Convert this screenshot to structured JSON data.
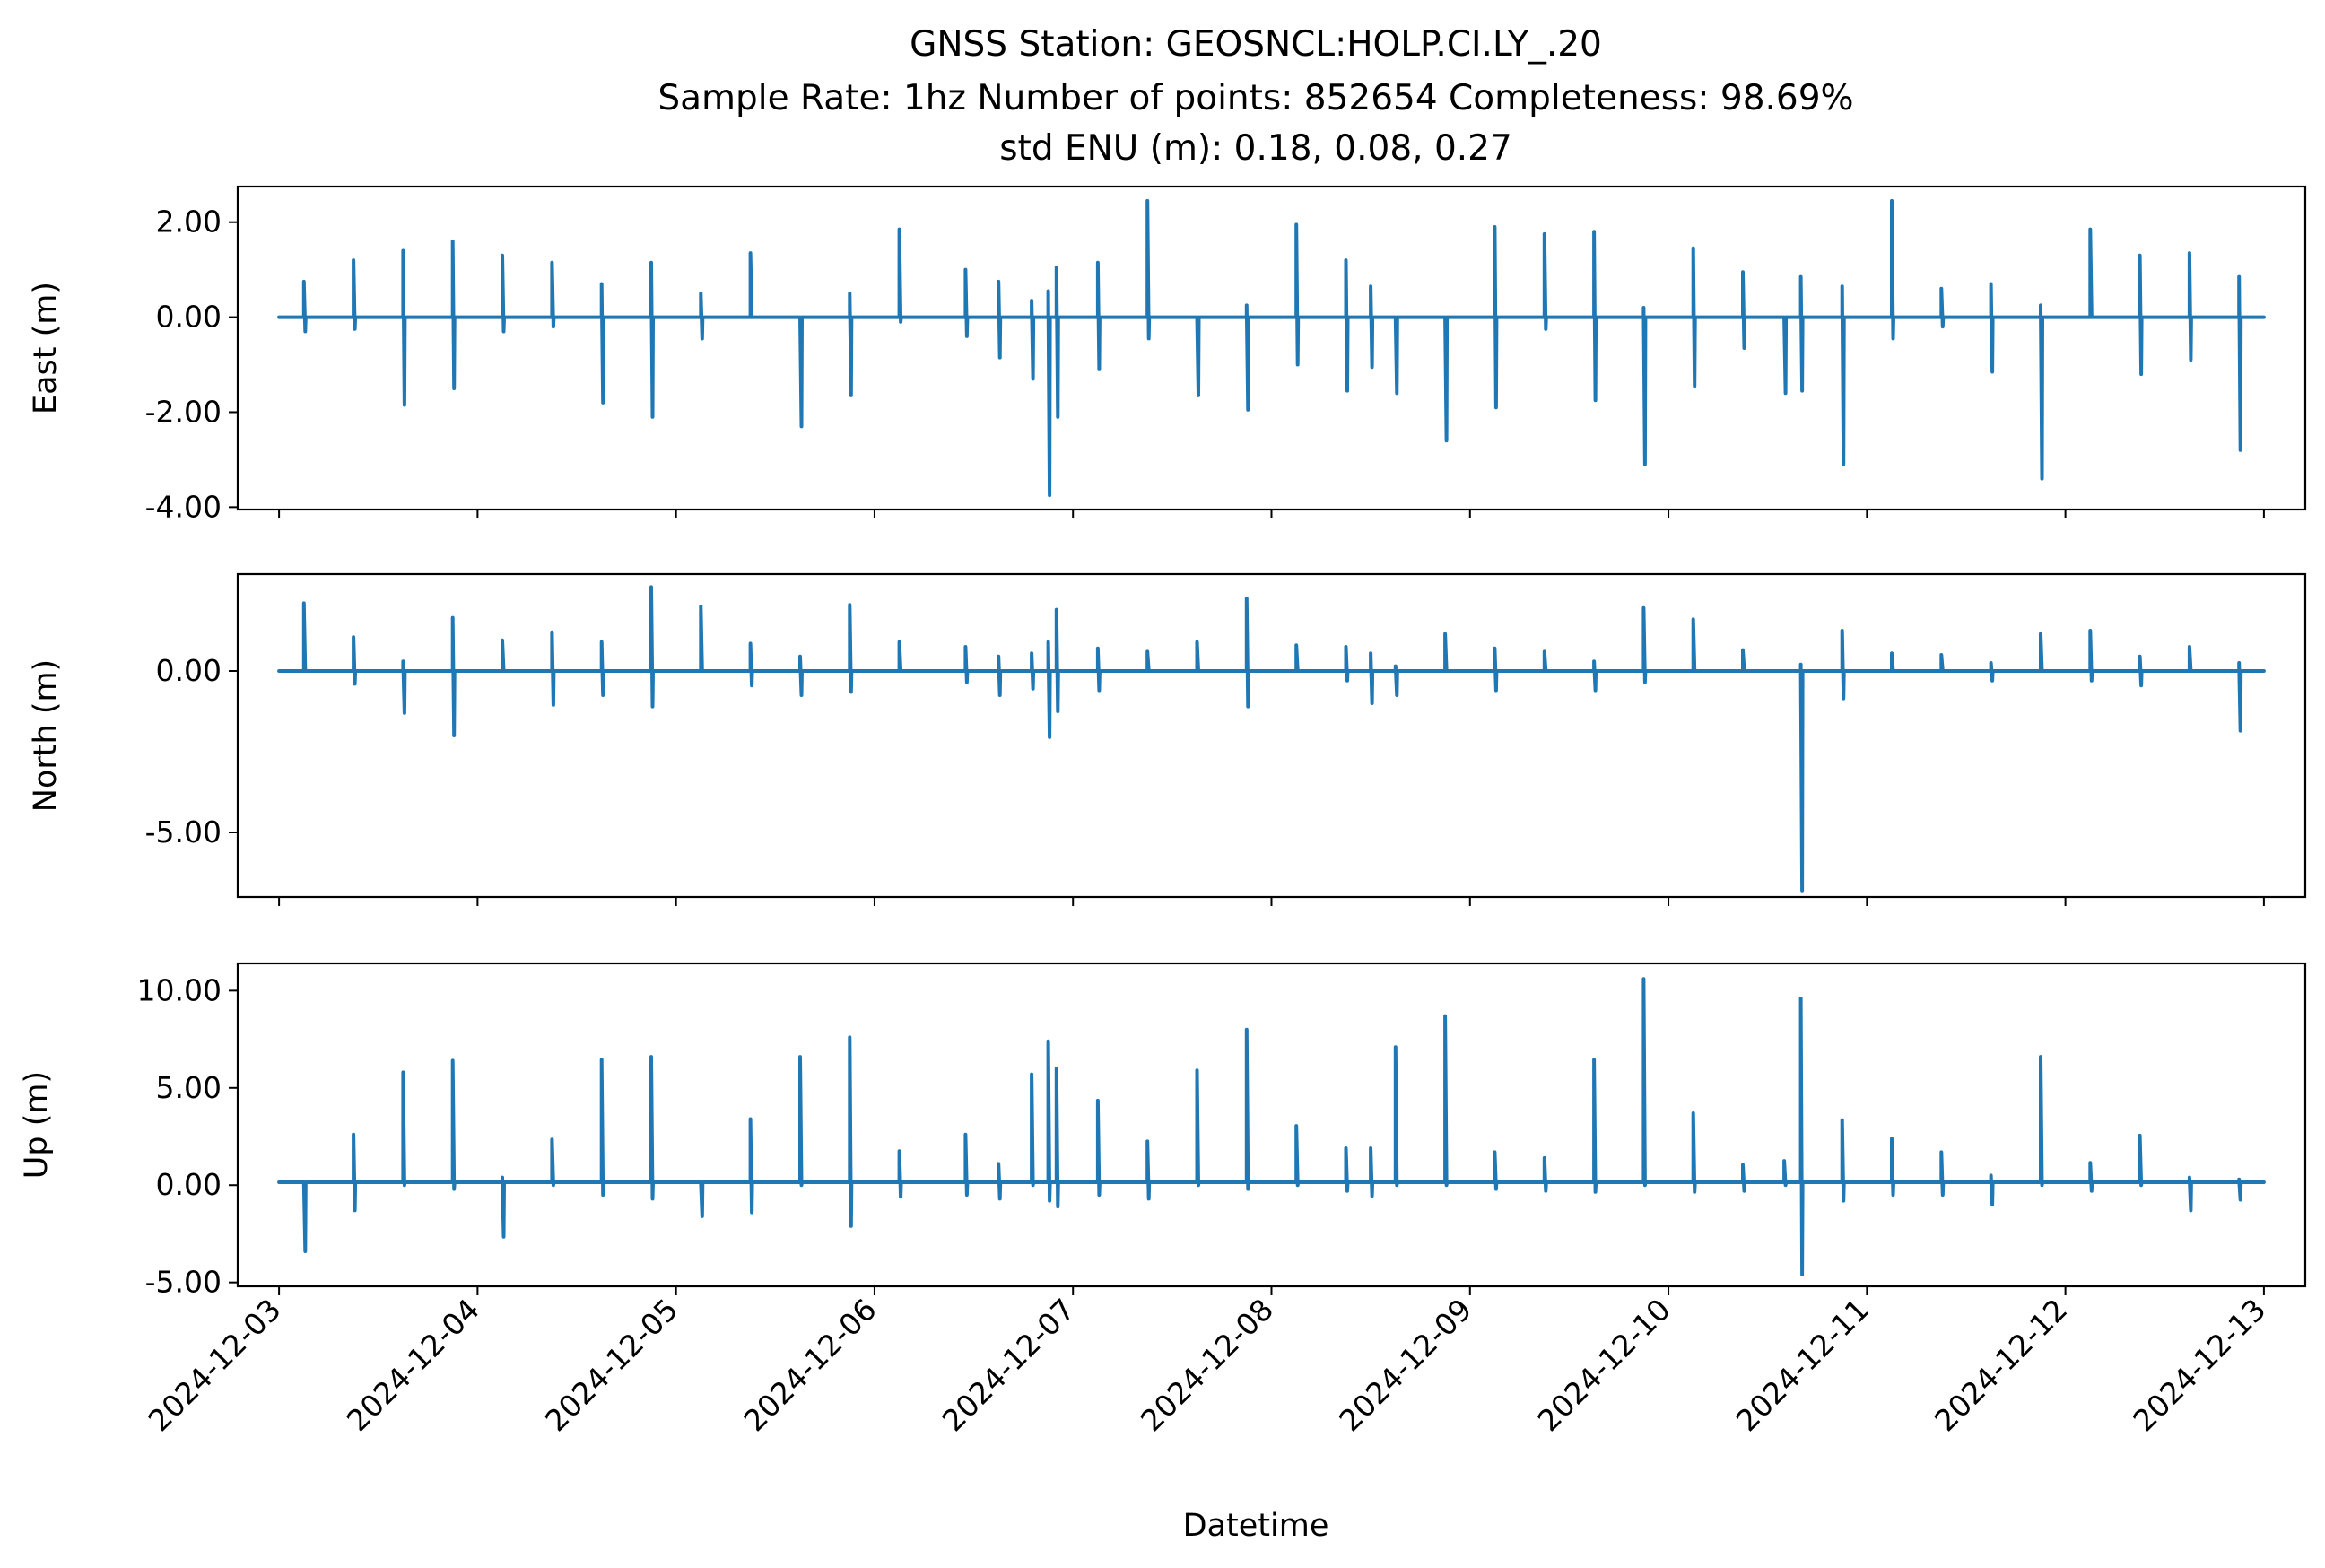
{
  "chart_data": {
    "type": "line",
    "title_lines": [
      "GNSS Station: GEOSNCL:HOLP.CI.LY_.20",
      "Sample Rate: 1hz   Number of points: 852654    Completeness:  98.69%",
      "std ENU (m):  0.18, 0.08, 0.27"
    ],
    "xlabel": "Datetime",
    "x_ticks": [
      "2024-12-03",
      "2024-12-04",
      "2024-12-05",
      "2024-12-06",
      "2024-12-07",
      "2024-12-08",
      "2024-12-09",
      "2024-12-10",
      "2024-12-11",
      "2024-12-12",
      "2024-12-13"
    ],
    "xlim": [
      "2024-12-02 19:00",
      "2024-12-13 05:00"
    ],
    "line_color": "#1f77b4",
    "grid": false,
    "panels": [
      {
        "name": "East",
        "ylabel": "East (m)",
        "ylim": [
          -4.05,
          2.75
        ],
        "y_ticks": [
          2.0,
          0.0,
          -2.0,
          -4.0
        ],
        "y_tick_labels": [
          "2.00",
          "0.00",
          "-2.00",
          "-4.00"
        ],
        "baseline": 0.0,
        "spikes": [
          {
            "x": "2024-12-03 03:00",
            "max": 0.75,
            "min": -0.3
          },
          {
            "x": "2024-12-03 09:00",
            "max": 1.2,
            "min": -0.25
          },
          {
            "x": "2024-12-03 15:00",
            "max": 1.4,
            "min": -1.85
          },
          {
            "x": "2024-12-03 21:00",
            "max": 1.6,
            "min": -1.5
          },
          {
            "x": "2024-12-04 03:00",
            "max": 1.3,
            "min": -0.3
          },
          {
            "x": "2024-12-04 09:00",
            "max": 1.15,
            "min": -0.2
          },
          {
            "x": "2024-12-04 15:00",
            "max": 0.7,
            "min": -1.8
          },
          {
            "x": "2024-12-04 21:00",
            "max": 1.15,
            "min": -2.1
          },
          {
            "x": "2024-12-05 03:00",
            "max": 0.5,
            "min": -0.45
          },
          {
            "x": "2024-12-05 09:00",
            "max": 1.35,
            "min": 0.0
          },
          {
            "x": "2024-12-05 15:00",
            "max": 0.0,
            "min": -2.3
          },
          {
            "x": "2024-12-05 21:00",
            "max": 0.5,
            "min": -1.65
          },
          {
            "x": "2024-12-06 03:00",
            "max": 1.85,
            "min": -0.1
          },
          {
            "x": "2024-12-06 11:00",
            "max": 1.0,
            "min": -0.4
          },
          {
            "x": "2024-12-06 15:00",
            "max": 0.75,
            "min": -0.85
          },
          {
            "x": "2024-12-06 19:00",
            "max": 0.35,
            "min": -1.3
          },
          {
            "x": "2024-12-06 21:00",
            "max": 0.55,
            "min": -3.75
          },
          {
            "x": "2024-12-06 22:00",
            "max": 1.05,
            "min": -2.1
          },
          {
            "x": "2024-12-07 03:00",
            "max": 1.15,
            "min": -1.1
          },
          {
            "x": "2024-12-07 09:00",
            "max": 2.45,
            "min": -0.45
          },
          {
            "x": "2024-12-07 15:00",
            "max": 0.0,
            "min": -1.65
          },
          {
            "x": "2024-12-07 21:00",
            "max": 0.25,
            "min": -1.95
          },
          {
            "x": "2024-12-08 03:00",
            "max": 1.95,
            "min": -1.0
          },
          {
            "x": "2024-12-08 09:00",
            "max": 1.2,
            "min": -1.55
          },
          {
            "x": "2024-12-08 12:00",
            "max": 0.65,
            "min": -1.05
          },
          {
            "x": "2024-12-08 15:00",
            "max": 0.0,
            "min": -1.6
          },
          {
            "x": "2024-12-08 21:00",
            "max": 0.0,
            "min": -2.6
          },
          {
            "x": "2024-12-09 03:00",
            "max": 1.9,
            "min": -1.9
          },
          {
            "x": "2024-12-09 09:00",
            "max": 1.75,
            "min": -0.25
          },
          {
            "x": "2024-12-09 15:00",
            "max": 1.8,
            "min": -1.75
          },
          {
            "x": "2024-12-09 21:00",
            "max": 0.2,
            "min": -3.1
          },
          {
            "x": "2024-12-10 03:00",
            "max": 1.45,
            "min": -1.45
          },
          {
            "x": "2024-12-10 09:00",
            "max": 0.95,
            "min": -0.65
          },
          {
            "x": "2024-12-10 14:00",
            "max": 0.0,
            "min": -1.6
          },
          {
            "x": "2024-12-10 16:00",
            "max": 0.85,
            "min": -1.55
          },
          {
            "x": "2024-12-10 21:00",
            "max": 0.65,
            "min": -3.1
          },
          {
            "x": "2024-12-11 03:00",
            "max": 2.45,
            "min": -0.45
          },
          {
            "x": "2024-12-11 09:00",
            "max": 0.6,
            "min": -0.2
          },
          {
            "x": "2024-12-11 15:00",
            "max": 0.7,
            "min": -1.15
          },
          {
            "x": "2024-12-11 21:00",
            "max": 0.25,
            "min": -3.4
          },
          {
            "x": "2024-12-12 03:00",
            "max": 1.85,
            "min": 0.0
          },
          {
            "x": "2024-12-12 09:00",
            "max": 1.3,
            "min": -1.2
          },
          {
            "x": "2024-12-12 15:00",
            "max": 1.35,
            "min": -0.9
          },
          {
            "x": "2024-12-12 21:00",
            "max": 0.85,
            "min": -2.8
          }
        ]
      },
      {
        "name": "North",
        "ylabel": "North (m)",
        "ylim": [
          -7.0,
          3.0
        ],
        "y_ticks": [
          0.0,
          -5.0
        ],
        "y_tick_labels": [
          "0.00",
          "-5.00"
        ],
        "baseline": 0.0,
        "spikes": [
          {
            "x": "2024-12-03 03:00",
            "max": 2.1,
            "min": 0.0
          },
          {
            "x": "2024-12-03 09:00",
            "max": 1.05,
            "min": -0.4
          },
          {
            "x": "2024-12-03 15:00",
            "max": 0.3,
            "min": -1.3
          },
          {
            "x": "2024-12-03 21:00",
            "max": 1.65,
            "min": -2.0
          },
          {
            "x": "2024-12-04 03:00",
            "max": 0.95,
            "min": 0.0
          },
          {
            "x": "2024-12-04 09:00",
            "max": 1.2,
            "min": -1.05
          },
          {
            "x": "2024-12-04 15:00",
            "max": 0.9,
            "min": -0.75
          },
          {
            "x": "2024-12-04 21:00",
            "max": 2.6,
            "min": -1.1
          },
          {
            "x": "2024-12-05 03:00",
            "max": 2.0,
            "min": 0.0
          },
          {
            "x": "2024-12-05 09:00",
            "max": 0.85,
            "min": -0.45
          },
          {
            "x": "2024-12-05 15:00",
            "max": 0.45,
            "min": -0.75
          },
          {
            "x": "2024-12-05 21:00",
            "max": 2.05,
            "min": -0.65
          },
          {
            "x": "2024-12-06 03:00",
            "max": 0.9,
            "min": 0.0
          },
          {
            "x": "2024-12-06 11:00",
            "max": 0.75,
            "min": -0.35
          },
          {
            "x": "2024-12-06 15:00",
            "max": 0.45,
            "min": -0.75
          },
          {
            "x": "2024-12-06 19:00",
            "max": 0.55,
            "min": -0.55
          },
          {
            "x": "2024-12-06 21:00",
            "max": 0.9,
            "min": -2.05
          },
          {
            "x": "2024-12-06 22:00",
            "max": 1.9,
            "min": -1.25
          },
          {
            "x": "2024-12-07 03:00",
            "max": 0.7,
            "min": -0.6
          },
          {
            "x": "2024-12-07 09:00",
            "max": 0.6,
            "min": 0.0
          },
          {
            "x": "2024-12-07 15:00",
            "max": 0.9,
            "min": 0.0
          },
          {
            "x": "2024-12-07 21:00",
            "max": 2.25,
            "min": -1.1
          },
          {
            "x": "2024-12-08 03:00",
            "max": 0.8,
            "min": 0.0
          },
          {
            "x": "2024-12-08 09:00",
            "max": 0.75,
            "min": -0.3
          },
          {
            "x": "2024-12-08 12:00",
            "max": 0.55,
            "min": -1.0
          },
          {
            "x": "2024-12-08 15:00",
            "max": 0.15,
            "min": -0.75
          },
          {
            "x": "2024-12-08 21:00",
            "max": 1.15,
            "min": 0.0
          },
          {
            "x": "2024-12-09 03:00",
            "max": 0.7,
            "min": -0.6
          },
          {
            "x": "2024-12-09 09:00",
            "max": 0.6,
            "min": 0.0
          },
          {
            "x": "2024-12-09 15:00",
            "max": 0.3,
            "min": -0.6
          },
          {
            "x": "2024-12-09 21:00",
            "max": 1.95,
            "min": -0.35
          },
          {
            "x": "2024-12-10 03:00",
            "max": 1.6,
            "min": 0.0
          },
          {
            "x": "2024-12-10 09:00",
            "max": 0.65,
            "min": 0.0
          },
          {
            "x": "2024-12-10 16:00",
            "max": 0.2,
            "min": -6.8
          },
          {
            "x": "2024-12-10 21:00",
            "max": 1.25,
            "min": -0.85
          },
          {
            "x": "2024-12-11 03:00",
            "max": 0.55,
            "min": 0.0
          },
          {
            "x": "2024-12-11 09:00",
            "max": 0.5,
            "min": 0.0
          },
          {
            "x": "2024-12-11 15:00",
            "max": 0.25,
            "min": -0.3
          },
          {
            "x": "2024-12-11 21:00",
            "max": 1.15,
            "min": 0.0
          },
          {
            "x": "2024-12-12 03:00",
            "max": 1.25,
            "min": -0.3
          },
          {
            "x": "2024-12-12 09:00",
            "max": 0.45,
            "min": -0.45
          },
          {
            "x": "2024-12-12 15:00",
            "max": 0.75,
            "min": 0.0
          },
          {
            "x": "2024-12-12 21:00",
            "max": 0.25,
            "min": -1.85
          }
        ]
      },
      {
        "name": "Up",
        "ylabel": "Up (m)",
        "ylim": [
          -5.2,
          11.4
        ],
        "y_ticks": [
          10.0,
          5.0,
          0.0,
          -5.0
        ],
        "y_tick_labels": [
          "10.00",
          "5.00",
          "0.00",
          "-5.00"
        ],
        "baseline": 0.15,
        "spikes": [
          {
            "x": "2024-12-03 03:00",
            "max": 0.15,
            "min": -3.4
          },
          {
            "x": "2024-12-03 09:00",
            "max": 2.6,
            "min": -1.3
          },
          {
            "x": "2024-12-03 15:00",
            "max": 5.8,
            "min": 0.0
          },
          {
            "x": "2024-12-03 21:00",
            "max": 6.4,
            "min": -0.2
          },
          {
            "x": "2024-12-04 03:00",
            "max": 0.4,
            "min": -2.65
          },
          {
            "x": "2024-12-04 09:00",
            "max": 2.35,
            "min": 0.0
          },
          {
            "x": "2024-12-04 15:00",
            "max": 6.45,
            "min": -0.5
          },
          {
            "x": "2024-12-04 21:00",
            "max": 6.6,
            "min": -0.7
          },
          {
            "x": "2024-12-05 03:00",
            "max": 0.15,
            "min": -1.6
          },
          {
            "x": "2024-12-05 09:00",
            "max": 3.4,
            "min": -1.4
          },
          {
            "x": "2024-12-05 15:00",
            "max": 6.6,
            "min": 0.0
          },
          {
            "x": "2024-12-05 21:00",
            "max": 7.6,
            "min": -2.1
          },
          {
            "x": "2024-12-06 03:00",
            "max": 1.75,
            "min": -0.6
          },
          {
            "x": "2024-12-06 11:00",
            "max": 2.6,
            "min": -0.5
          },
          {
            "x": "2024-12-06 15:00",
            "max": 1.1,
            "min": -0.7
          },
          {
            "x": "2024-12-06 19:00",
            "max": 5.7,
            "min": 0.0
          },
          {
            "x": "2024-12-06 21:00",
            "max": 7.4,
            "min": -0.8
          },
          {
            "x": "2024-12-06 22:00",
            "max": 6.0,
            "min": -1.1
          },
          {
            "x": "2024-12-07 03:00",
            "max": 4.35,
            "min": -0.5
          },
          {
            "x": "2024-12-07 09:00",
            "max": 2.25,
            "min": -0.7
          },
          {
            "x": "2024-12-07 15:00",
            "max": 5.9,
            "min": 0.0
          },
          {
            "x": "2024-12-07 21:00",
            "max": 8.0,
            "min": -0.2
          },
          {
            "x": "2024-12-08 03:00",
            "max": 3.05,
            "min": 0.0
          },
          {
            "x": "2024-12-08 09:00",
            "max": 1.9,
            "min": -0.3
          },
          {
            "x": "2024-12-08 12:00",
            "max": 1.9,
            "min": -0.55
          },
          {
            "x": "2024-12-08 15:00",
            "max": 7.1,
            "min": 0.0
          },
          {
            "x": "2024-12-08 21:00",
            "max": 8.7,
            "min": 0.0
          },
          {
            "x": "2024-12-09 03:00",
            "max": 1.7,
            "min": -0.2
          },
          {
            "x": "2024-12-09 09:00",
            "max": 1.4,
            "min": -0.3
          },
          {
            "x": "2024-12-09 15:00",
            "max": 6.45,
            "min": -0.35
          },
          {
            "x": "2024-12-09 21:00",
            "max": 10.6,
            "min": 0.0
          },
          {
            "x": "2024-12-10 03:00",
            "max": 3.7,
            "min": -0.35
          },
          {
            "x": "2024-12-10 09:00",
            "max": 1.05,
            "min": -0.3
          },
          {
            "x": "2024-12-10 14:00",
            "max": 1.25,
            "min": 0.0
          },
          {
            "x": "2024-12-10 16:00",
            "max": 9.6,
            "min": -4.6
          },
          {
            "x": "2024-12-10 21:00",
            "max": 3.35,
            "min": -0.8
          },
          {
            "x": "2024-12-11 03:00",
            "max": 2.4,
            "min": -0.5
          },
          {
            "x": "2024-12-11 09:00",
            "max": 1.7,
            "min": -0.5
          },
          {
            "x": "2024-12-11 15:00",
            "max": 0.5,
            "min": -1.0
          },
          {
            "x": "2024-12-11 21:00",
            "max": 6.6,
            "min": 0.0
          },
          {
            "x": "2024-12-12 03:00",
            "max": 1.15,
            "min": -0.3
          },
          {
            "x": "2024-12-12 09:00",
            "max": 2.55,
            "min": 0.0
          },
          {
            "x": "2024-12-12 15:00",
            "max": 0.4,
            "min": -1.3
          },
          {
            "x": "2024-12-12 21:00",
            "max": 0.3,
            "min": -0.75
          }
        ]
      }
    ]
  }
}
